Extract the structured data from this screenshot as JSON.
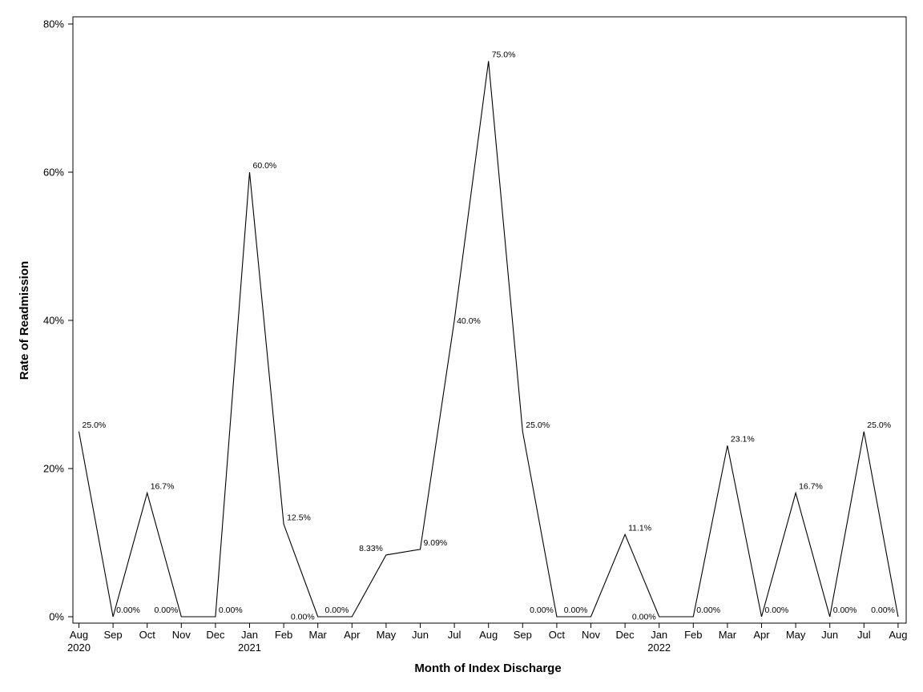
{
  "chart_data": {
    "type": "line",
    "title": "",
    "xlabel": "Month of Index Discharge",
    "ylabel": "Rate of Readmission",
    "ylim": [
      0,
      80
    ],
    "yticks": [
      {
        "value": 0,
        "label": "0%"
      },
      {
        "value": 20,
        "label": "20%"
      },
      {
        "value": 40,
        "label": "40%"
      },
      {
        "value": 60,
        "label": "60%"
      },
      {
        "value": 80,
        "label": "80%"
      }
    ],
    "grid": false,
    "legend": "none",
    "line_color": "#000000",
    "categories": [
      {
        "month": "Aug",
        "year": "2020"
      },
      {
        "month": "Sep",
        "year": ""
      },
      {
        "month": "Oct",
        "year": ""
      },
      {
        "month": "Nov",
        "year": ""
      },
      {
        "month": "Dec",
        "year": ""
      },
      {
        "month": "Jan",
        "year": "2021"
      },
      {
        "month": "Feb",
        "year": ""
      },
      {
        "month": "Mar",
        "year": ""
      },
      {
        "month": "Apr",
        "year": ""
      },
      {
        "month": "May",
        "year": ""
      },
      {
        "month": "Jun",
        "year": ""
      },
      {
        "month": "Jul",
        "year": ""
      },
      {
        "month": "Aug",
        "year": ""
      },
      {
        "month": "Sep",
        "year": ""
      },
      {
        "month": "Oct",
        "year": ""
      },
      {
        "month": "Nov",
        "year": ""
      },
      {
        "month": "Dec",
        "year": ""
      },
      {
        "month": "Jan",
        "year": "2022"
      },
      {
        "month": "Feb",
        "year": ""
      },
      {
        "month": "Mar",
        "year": ""
      },
      {
        "month": "Apr",
        "year": ""
      },
      {
        "month": "May",
        "year": ""
      },
      {
        "month": "Jun",
        "year": ""
      },
      {
        "month": "Jul",
        "year": ""
      },
      {
        "month": "Aug",
        "year": ""
      }
    ],
    "values": [
      25.0,
      0,
      16.7,
      0,
      0,
      60.0,
      12.5,
      0,
      0,
      8.33,
      9.09,
      40.0,
      75.0,
      25.0,
      0,
      0,
      11.1,
      0,
      0,
      23.1,
      0,
      16.7,
      0,
      25.0,
      0
    ],
    "data_labels": [
      {
        "index": 0,
        "text": "25.0%",
        "anchor": "right-above"
      },
      {
        "index": 1,
        "text": "0.00%",
        "anchor": "right-above"
      },
      {
        "index": 2,
        "text": "16.7%",
        "anchor": "right-above"
      },
      {
        "index": 3,
        "text": "0.00%",
        "anchor": "left-above"
      },
      {
        "index": 4,
        "text": "0.00%",
        "anchor": "right-above"
      },
      {
        "index": 5,
        "text": "60.0%",
        "anchor": "right-above"
      },
      {
        "index": 6,
        "text": "12.5%",
        "anchor": "right-above"
      },
      {
        "index": 7,
        "text": "0.00%",
        "anchor": "left-same"
      },
      {
        "index": 8,
        "text": "0.00%",
        "anchor": "left-above"
      },
      {
        "index": 9,
        "text": "8.33%",
        "anchor": "left-above"
      },
      {
        "index": 10,
        "text": "9.09%",
        "anchor": "right-above"
      },
      {
        "index": 11,
        "text": "40.0%",
        "anchor": "right-center"
      },
      {
        "index": 12,
        "text": "75.0%",
        "anchor": "right-above"
      },
      {
        "index": 13,
        "text": "25.0%",
        "anchor": "right-above"
      },
      {
        "index": 14,
        "text": "0.00%",
        "anchor": "left-above"
      },
      {
        "index": 15,
        "text": "0.00%",
        "anchor": "left-above"
      },
      {
        "index": 16,
        "text": "11.1%",
        "anchor": "right-above"
      },
      {
        "index": 17,
        "text": "0.00%",
        "anchor": "left-same"
      },
      {
        "index": 18,
        "text": "0.00%",
        "anchor": "right-above"
      },
      {
        "index": 19,
        "text": "23.1%",
        "anchor": "right-above"
      },
      {
        "index": 20,
        "text": "0.00%",
        "anchor": "right-above"
      },
      {
        "index": 21,
        "text": "16.7%",
        "anchor": "right-above"
      },
      {
        "index": 22,
        "text": "0.00%",
        "anchor": "right-above"
      },
      {
        "index": 23,
        "text": "25.0%",
        "anchor": "right-above"
      },
      {
        "index": 24,
        "text": "0.00%",
        "anchor": "left-above"
      }
    ]
  }
}
